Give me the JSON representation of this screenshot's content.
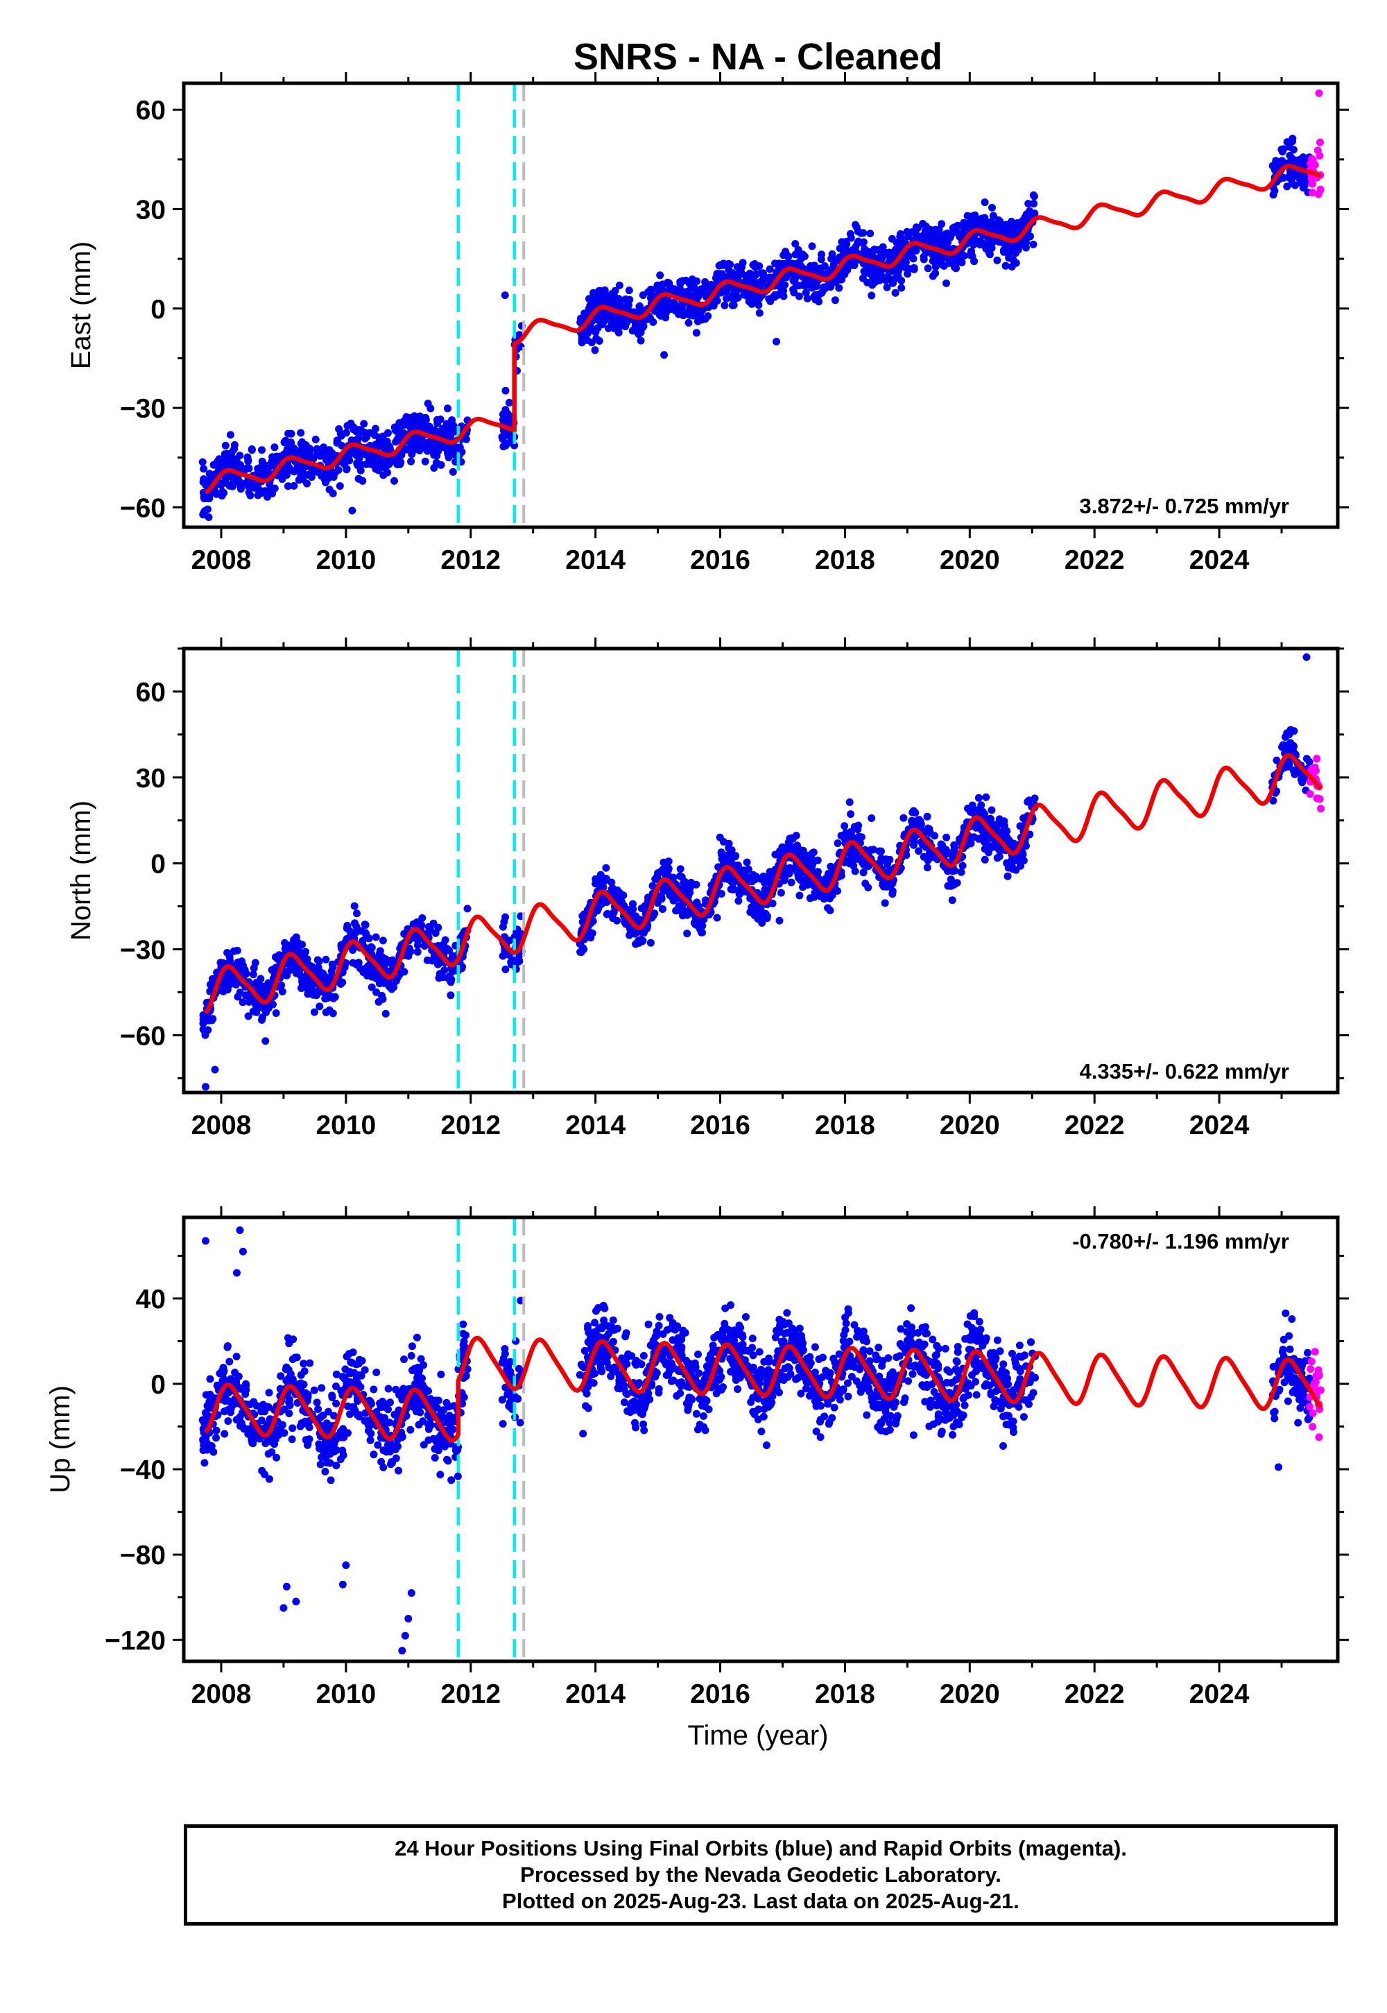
{
  "title": "SNRS  - NA - Cleaned",
  "colors": {
    "final_orbits": "#0000ee",
    "rapid_orbits": "#ff00ff",
    "model_fit": "#ee0000",
    "event_cyan": "#00eeee",
    "event_gray": "#bbbbbb"
  },
  "footer": {
    "line1": "24 Hour Positions Using Final Orbits (blue) and Rapid Orbits (magenta).",
    "line2": "Processed by the Nevada Geodetic Laboratory.",
    "line3": "Plotted on 2025-Aug-23. Last data on 2025-Aug-21."
  },
  "chart_data": [
    {
      "type": "scatter",
      "component": "east",
      "ylabel": "East (mm)",
      "xlim": [
        2007.4,
        2025.9
      ],
      "ylim": [
        -66,
        68
      ],
      "xticks": [
        2008,
        2010,
        2012,
        2014,
        2016,
        2018,
        2020,
        2022,
        2024
      ],
      "yticks": [
        -60,
        -30,
        0,
        30,
        60
      ],
      "rate_text": "3.872+/- 0.725 mm/yr",
      "event_lines": {
        "cyan": [
          2011.8,
          2012.7
        ],
        "gray": [
          2012.85
        ]
      },
      "fit": {
        "rate": 3.872,
        "value_at_2008": -52,
        "offsets": [
          {
            "x": 2012.7,
            "dy": 26
          }
        ],
        "annual_amp": 2.5,
        "semiannual_amp": 0.6
      },
      "series": [
        {
          "orbit": "final",
          "ranges": [
            [
              2007.7,
              2011.95
            ],
            [
              2012.5,
              2012.82
            ],
            [
              2013.75,
              2021.05
            ],
            [
              2024.85,
              2025.45
            ]
          ],
          "scatter": 3.5
        },
        {
          "orbit": "rapid",
          "ranges": [
            [
              2025.45,
              2025.63
            ]
          ],
          "scatter": 4
        }
      ],
      "outliers": [
        {
          "x": 2007.8,
          "y": -63
        },
        {
          "x": 2010.1,
          "y": -61
        },
        {
          "x": 2015.1,
          "y": -14
        },
        {
          "x": 2016.9,
          "y": -10
        },
        {
          "x": 2025.6,
          "y": 65
        },
        {
          "x": 2012.55,
          "y": 4
        }
      ]
    },
    {
      "type": "scatter",
      "component": "north",
      "ylabel": "North (mm)",
      "xlim": [
        2007.4,
        2025.9
      ],
      "ylim": [
        -80,
        75
      ],
      "xticks": [
        2008,
        2010,
        2012,
        2014,
        2016,
        2018,
        2020,
        2022,
        2024
      ],
      "yticks": [
        -60,
        -30,
        0,
        30,
        60
      ],
      "rate_text": "4.335+/- 0.622 mm/yr",
      "event_lines": {
        "cyan": [
          2011.8,
          2012.7
        ],
        "gray": [
          2012.85
        ]
      },
      "fit": {
        "rate": 4.335,
        "value_at_2008": -44,
        "offsets": [],
        "annual_amp": 7,
        "semiannual_amp": 1.5
      },
      "series": [
        {
          "orbit": "final",
          "ranges": [
            [
              2007.7,
              2011.95
            ],
            [
              2012.5,
              2012.82
            ],
            [
              2013.75,
              2021.05
            ],
            [
              2024.85,
              2025.45
            ]
          ],
          "scatter": 4
        },
        {
          "orbit": "rapid",
          "ranges": [
            [
              2025.45,
              2025.63
            ]
          ],
          "scatter": 3
        }
      ],
      "outliers": [
        {
          "x": 2007.75,
          "y": -78
        },
        {
          "x": 2007.9,
          "y": -72
        },
        {
          "x": 2015.5,
          "y": -17
        },
        {
          "x": 2015.95,
          "y": -19
        },
        {
          "x": 2016.95,
          "y": -20
        },
        {
          "x": 2025.4,
          "y": 72
        }
      ]
    },
    {
      "type": "scatter",
      "component": "up",
      "ylabel": "Up (mm)",
      "xlim": [
        2007.4,
        2025.9
      ],
      "ylim": [
        -130,
        78
      ],
      "xticks": [
        2008,
        2010,
        2012,
        2014,
        2016,
        2018,
        2020,
        2022,
        2024
      ],
      "yticks": [
        -120,
        -80,
        -40,
        0,
        40
      ],
      "rate_text": "-0.780+/- 1.196 mm/yr",
      "event_lines": {
        "cyan": [
          2011.8,
          2012.7
        ],
        "gray": [
          2012.85
        ]
      },
      "fit": {
        "rate": -0.78,
        "value_at_2008": -12,
        "offsets": [
          {
            "x": 2011.8,
            "dy": 25
          }
        ],
        "annual_amp": 11,
        "semiannual_amp": 2
      },
      "series": [
        {
          "orbit": "final",
          "ranges": [
            [
              2007.7,
              2011.95
            ],
            [
              2012.5,
              2012.82
            ],
            [
              2013.75,
              2021.05
            ],
            [
              2024.85,
              2025.45
            ]
          ],
          "scatter": 9
        },
        {
          "orbit": "rapid",
          "ranges": [
            [
              2025.45,
              2025.63
            ]
          ],
          "scatter": 10
        }
      ],
      "outliers": [
        {
          "x": 2007.75,
          "y": 67
        },
        {
          "x": 2008.3,
          "y": 72
        },
        {
          "x": 2008.35,
          "y": 62
        },
        {
          "x": 2008.25,
          "y": 52
        },
        {
          "x": 2009.0,
          "y": -105
        },
        {
          "x": 2009.05,
          "y": -95
        },
        {
          "x": 2009.2,
          "y": -102
        },
        {
          "x": 2009.95,
          "y": -94
        },
        {
          "x": 2010.0,
          "y": -85
        },
        {
          "x": 2010.9,
          "y": -125
        },
        {
          "x": 2010.95,
          "y": -118
        },
        {
          "x": 2011.0,
          "y": -110
        },
        {
          "x": 2011.05,
          "y": -98
        },
        {
          "x": 2012.8,
          "y": 39
        },
        {
          "x": 2019.1,
          "y": -24
        },
        {
          "x": 2024.95,
          "y": -39
        },
        {
          "x": 2025.6,
          "y": -25
        }
      ]
    }
  ],
  "xlabel": "Time (year)"
}
